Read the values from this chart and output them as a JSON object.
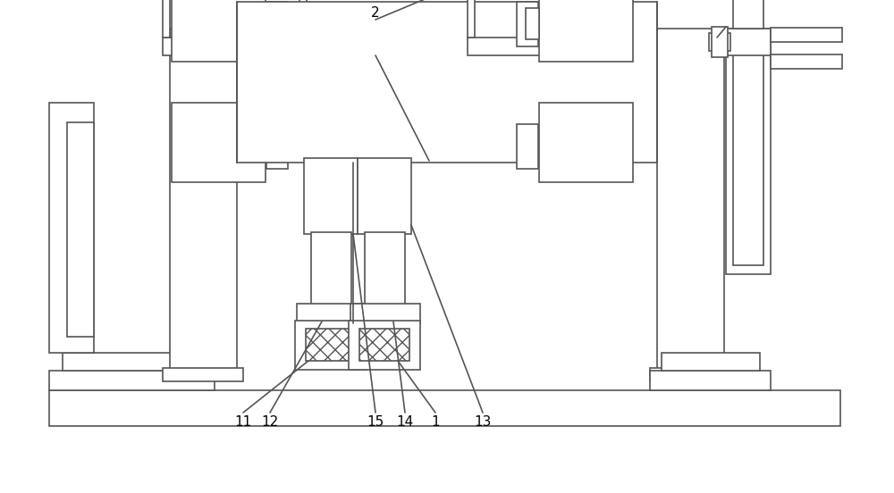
{
  "bg": "#ffffff",
  "lc": "#555555",
  "lw": 1.2,
  "fig_w": 10.0,
  "fig_h": 5.52,
  "dpi": 100
}
